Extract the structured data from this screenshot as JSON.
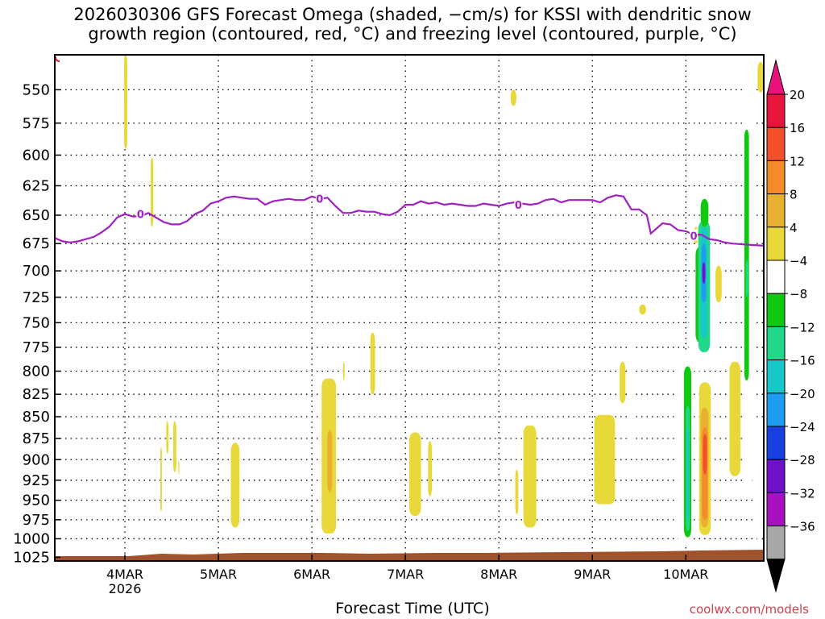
{
  "title": "2026030306 GFS Forecast Omega (shaded, −cm/s) for KSSI with dendritic snow\ngrowth region (contoured, red, °C) and freezing level (contoured, purple, °C)",
  "credit": "coolwx.com/models",
  "chart_data": {
    "type": "heatmap",
    "title": "2026030306 GFS Forecast Omega (shaded, −cm/s) for KSSI with dendritic snow growth region (contoured, red, °C) and freezing level (contoured, purple, °C)",
    "xlabel": "Forecast Time (UTC)",
    "ylabel": "",
    "x_ticks": [
      {
        "t": 24,
        "label": "4MAR",
        "sub": "2026"
      },
      {
        "t": 48,
        "label": "5MAR",
        "sub": ""
      },
      {
        "t": 72,
        "label": "6MAR",
        "sub": ""
      },
      {
        "t": 96,
        "label": "7MAR",
        "sub": ""
      },
      {
        "t": 120,
        "label": "8MAR",
        "sub": ""
      },
      {
        "t": 144,
        "label": "9MAR",
        "sub": ""
      },
      {
        "t": 168,
        "label": "10MAR",
        "sub": ""
      }
    ],
    "xlim": [
      6,
      188
    ],
    "y_ticks": [
      550,
      575,
      600,
      625,
      650,
      675,
      700,
      725,
      750,
      775,
      800,
      825,
      850,
      875,
      900,
      925,
      950,
      975,
      1000,
      1025
    ],
    "ylim": [
      525,
      1030
    ],
    "y_axis": "pressure (hPa), log scale",
    "grid": true,
    "colorbar": {
      "levels": [
        "20",
        "16",
        "12",
        "8",
        "4",
        "−4",
        "−8",
        "−12",
        "−16",
        "−20",
        "−24",
        "−28",
        "−32",
        "−36"
      ],
      "colors": [
        "#e8143c",
        "#f44e2a",
        "#f48a2a",
        "#e8b030",
        "#e8d83a",
        "#ffffff",
        "#10c810",
        "#20d88a",
        "#18c8c8",
        "#1e9cf0",
        "#1840e0",
        "#7010c8",
        "#a810c0",
        "#a8a8a8"
      ],
      "top_arrow_color": "#e8147c",
      "bottom_arrow_color": "#000000"
    },
    "freezing_level": {
      "label": "0",
      "color": "#a020c0",
      "points": [
        [
          6,
          670
        ],
        [
          8,
          673
        ],
        [
          10,
          674
        ],
        [
          12,
          673
        ],
        [
          14,
          671
        ],
        [
          16,
          669
        ],
        [
          18,
          665
        ],
        [
          20,
          660
        ],
        [
          22,
          652
        ],
        [
          24,
          649
        ],
        [
          26,
          651
        ],
        [
          28,
          651
        ],
        [
          30,
          648
        ],
        [
          32,
          652
        ],
        [
          34,
          656
        ],
        [
          36,
          658
        ],
        [
          38,
          658
        ],
        [
          40,
          655
        ],
        [
          42,
          649
        ],
        [
          44,
          646
        ],
        [
          46,
          640
        ],
        [
          48,
          638
        ],
        [
          50,
          635
        ],
        [
          52,
          634
        ],
        [
          54,
          635
        ],
        [
          56,
          636
        ],
        [
          58,
          636
        ],
        [
          60,
          641
        ],
        [
          62,
          638
        ],
        [
          64,
          637
        ],
        [
          66,
          636
        ],
        [
          68,
          637
        ],
        [
          70,
          637
        ],
        [
          72,
          634
        ],
        [
          74,
          636
        ],
        [
          76,
          635
        ],
        [
          78,
          642
        ],
        [
          80,
          648
        ],
        [
          82,
          648
        ],
        [
          84,
          646
        ],
        [
          86,
          647
        ],
        [
          88,
          647
        ],
        [
          90,
          649
        ],
        [
          92,
          650
        ],
        [
          94,
          647
        ],
        [
          96,
          641
        ],
        [
          98,
          641
        ],
        [
          100,
          638
        ],
        [
          102,
          640
        ],
        [
          104,
          639
        ],
        [
          106,
          641
        ],
        [
          108,
          640
        ],
        [
          110,
          641
        ],
        [
          112,
          642
        ],
        [
          114,
          642
        ],
        [
          116,
          640
        ],
        [
          118,
          641
        ],
        [
          120,
          642
        ],
        [
          122,
          640
        ],
        [
          124,
          639
        ],
        [
          126,
          640
        ],
        [
          128,
          641
        ],
        [
          130,
          640
        ],
        [
          132,
          637
        ],
        [
          134,
          636
        ],
        [
          136,
          639
        ],
        [
          138,
          637
        ],
        [
          140,
          637
        ],
        [
          142,
          637
        ],
        [
          144,
          637
        ],
        [
          146,
          639
        ],
        [
          148,
          635
        ],
        [
          150,
          633
        ],
        [
          152,
          634
        ],
        [
          154,
          645
        ],
        [
          156,
          645
        ],
        [
          158,
          650
        ],
        [
          159,
          666
        ],
        [
          162,
          657
        ],
        [
          164,
          658
        ],
        [
          166,
          663
        ],
        [
          168,
          664
        ],
        [
          170,
          667
        ],
        [
          172,
          667
        ],
        [
          174,
          671
        ],
        [
          176,
          672
        ],
        [
          178,
          674
        ],
        [
          180,
          675
        ],
        [
          184,
          676
        ],
        [
          188,
          677
        ]
      ]
    },
    "omega_shading": [
      {
        "t0": 23.8,
        "t1": 24.6,
        "p0": 525,
        "p1": 595,
        "value": 4
      },
      {
        "t0": 23.8,
        "t1": 24.4,
        "p0": 548,
        "p1": 556,
        "value": 4
      },
      {
        "t0": 30.6,
        "t1": 31.3,
        "p0": 602,
        "p1": 660,
        "value": 4
      },
      {
        "t0": 34.6,
        "t1": 35.2,
        "p0": 855,
        "p1": 893,
        "value": 4
      },
      {
        "t0": 33.1,
        "t1": 33.5,
        "p0": 885,
        "p1": 965,
        "value": 4
      },
      {
        "t0": 36.4,
        "t1": 37.2,
        "p0": 855,
        "p1": 915,
        "value": 4
      },
      {
        "t0": 37.7,
        "t1": 38.0,
        "p0": 900,
        "p1": 918,
        "value": 4
      },
      {
        "t0": 51.2,
        "t1": 53.4,
        "p0": 880,
        "p1": 985,
        "value": 4
      },
      {
        "t0": 74.5,
        "t1": 78.2,
        "p0": 808,
        "p1": 993,
        "value": 4
      },
      {
        "t0": 76.0,
        "t1": 77.2,
        "p0": 865,
        "p1": 940,
        "value": 8
      },
      {
        "t0": 80.0,
        "t1": 80.4,
        "p0": 790,
        "p1": 810,
        "value": 4
      },
      {
        "t0": 87.0,
        "t1": 88.2,
        "p0": 760,
        "p1": 825,
        "value": 4
      },
      {
        "t0": 97.0,
        "t1": 100.0,
        "p0": 868,
        "p1": 970,
        "value": 4
      },
      {
        "t0": 101.8,
        "t1": 102.8,
        "p0": 878,
        "p1": 945,
        "value": 4
      },
      {
        "t0": 123.0,
        "t1": 124.5,
        "p0": 550,
        "p1": 562,
        "value": 4
      },
      {
        "t0": 124.2,
        "t1": 125.0,
        "p0": 912,
        "p1": 968,
        "value": 4
      },
      {
        "t0": 126.3,
        "t1": 129.6,
        "p0": 860,
        "p1": 985,
        "value": 4
      },
      {
        "t0": 151.0,
        "t1": 152.5,
        "p0": 790,
        "p1": 835,
        "value": 4
      },
      {
        "t0": 144.5,
        "t1": 149.8,
        "p0": 848,
        "p1": 955,
        "value": 4
      },
      {
        "t0": 153.0,
        "t1": 155.0,
        "p0": 752,
        "p1": 885,
        "value": -4
      },
      {
        "t0": 156.0,
        "t1": 157.8,
        "p0": 732,
        "p1": 742,
        "value": 4
      },
      {
        "t0": 166.0,
        "t1": 169.0,
        "p0": 778,
        "p1": 1008,
        "value": -4
      },
      {
        "t0": 167.5,
        "t1": 169.4,
        "p0": 795,
        "p1": 998,
        "value": -8
      },
      {
        "t0": 168.0,
        "t1": 169.0,
        "p0": 838,
        "p1": 990,
        "value": -12
      },
      {
        "t0": 168.2,
        "t1": 168.8,
        "p0": 862,
        "p1": 975,
        "value": -16
      },
      {
        "t0": 168.8,
        "t1": 171.0,
        "p0": 715,
        "p1": 800,
        "value": -4
      },
      {
        "t0": 169.5,
        "t1": 172.6,
        "p0": 703,
        "p1": 800,
        "value": -4
      },
      {
        "t0": 170.5,
        "t1": 172.6,
        "p0": 678,
        "p1": 770,
        "value": -8
      },
      {
        "t0": 172.2,
        "t1": 175.8,
        "p0": 675,
        "p1": 785,
        "value": -4
      },
      {
        "t0": 175.6,
        "t1": 177.2,
        "p0": 695,
        "p1": 730,
        "value": 4
      },
      {
        "t0": 171.2,
        "t1": 174.2,
        "p0": 655,
        "p1": 780,
        "value": -12
      },
      {
        "t0": 171.8,
        "t1": 173.4,
        "p0": 660,
        "p1": 765,
        "value": -16
      },
      {
        "t0": 172.0,
        "t1": 173.2,
        "p0": 675,
        "p1": 730,
        "value": -20
      },
      {
        "t0": 172.2,
        "t1": 173.0,
        "p0": 692,
        "p1": 712,
        "value": -28
      },
      {
        "t0": 171.8,
        "t1": 173.8,
        "p0": 636,
        "p1": 660,
        "value": -8
      },
      {
        "t0": 170.0,
        "t1": 171.2,
        "p0": 660,
        "p1": 675,
        "value": 4
      },
      {
        "t0": 171.4,
        "t1": 174.4,
        "p0": 812,
        "p1": 995,
        "value": 4
      },
      {
        "t0": 171.8,
        "t1": 173.8,
        "p0": 840,
        "p1": 985,
        "value": 8
      },
      {
        "t0": 172.2,
        "t1": 173.6,
        "p0": 862,
        "p1": 975,
        "value": 12
      },
      {
        "t0": 172.4,
        "t1": 173.4,
        "p0": 870,
        "p1": 918,
        "value": 16
      },
      {
        "t0": 179.2,
        "t1": 182.0,
        "p0": 790,
        "p1": 920,
        "value": 4
      },
      {
        "t0": 175.0,
        "t1": 177.0,
        "p0": 575,
        "p1": 582,
        "value": -4
      },
      {
        "t0": 182.4,
        "t1": 185.2,
        "p0": 525,
        "p1": 930,
        "value": -4
      },
      {
        "t0": 183.0,
        "t1": 184.2,
        "p0": 580,
        "p1": 810,
        "value": -8
      },
      {
        "t0": 183.4,
        "t1": 184.0,
        "p0": 690,
        "p1": 725,
        "value": -12
      },
      {
        "t0": 186.4,
        "t1": 188.0,
        "p0": 530,
        "p1": 552,
        "value": 4
      },
      {
        "t0": 185.8,
        "t1": 188.0,
        "p0": 868,
        "p1": 1002,
        "value": -4
      }
    ],
    "terrain_color": "#a0522d"
  }
}
